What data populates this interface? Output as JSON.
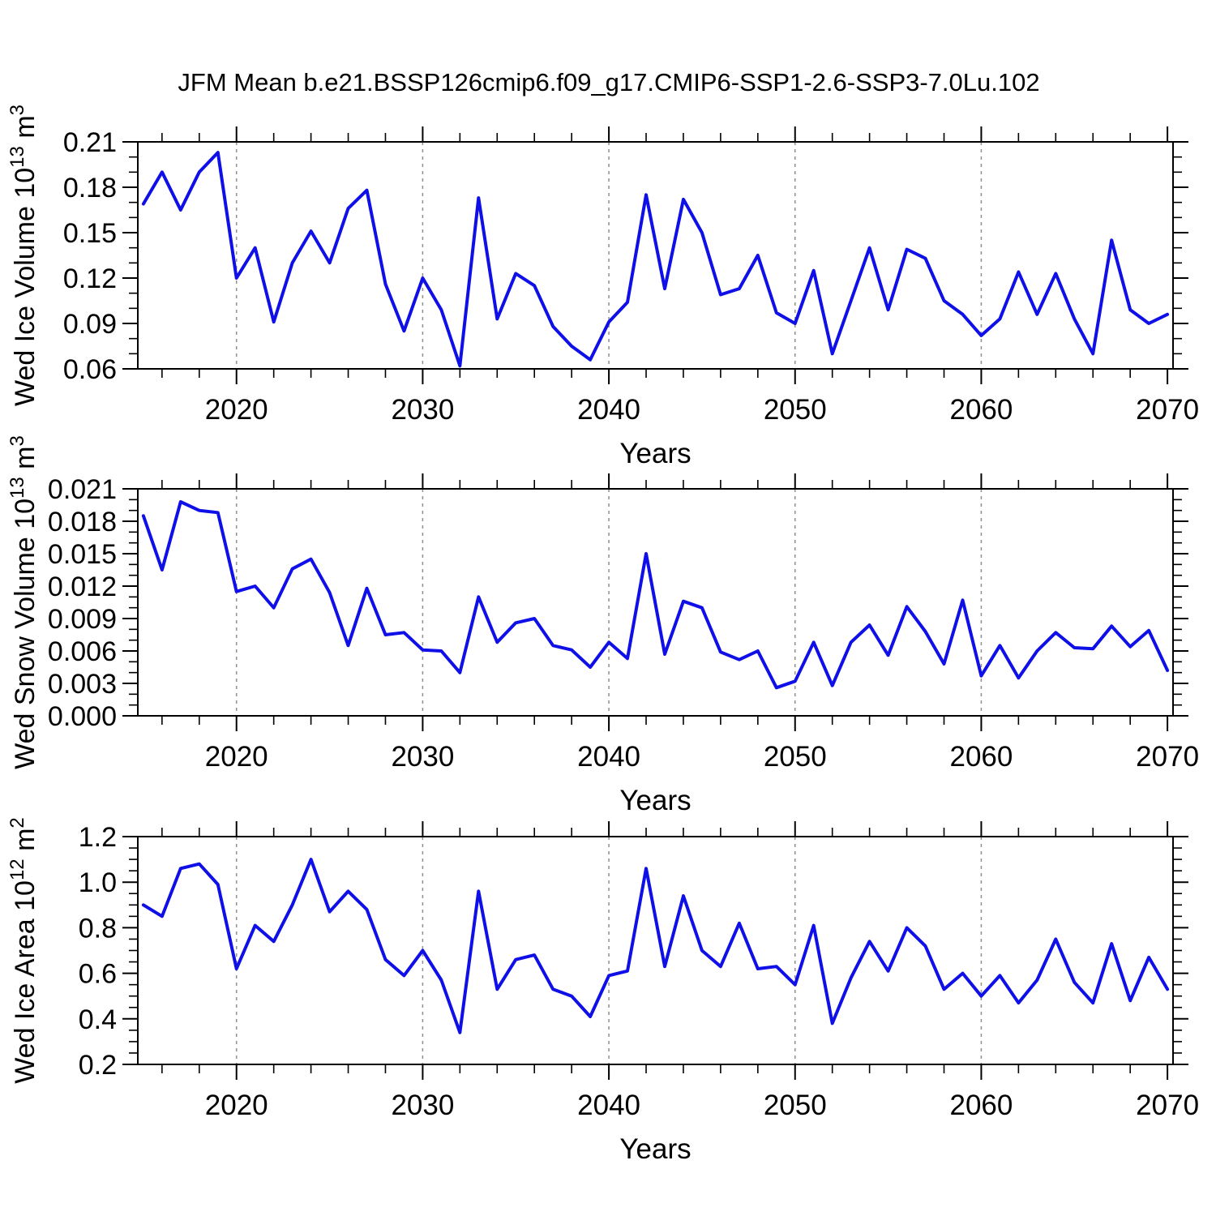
{
  "title": "JFM Mean b.e21.BSSP126cmip6.f09_g17.CMIP6-SSP1-2.6-SSP3-7.0Lu.102",
  "figure": {
    "background": "#ffffff",
    "line_color": "#0f0fe8",
    "grid_color": "#909090",
    "frame_color": "#000000",
    "xlabel": "Years"
  },
  "chart_data": [
    {
      "name": "wed-ice-volume",
      "type": "line",
      "title": "Wed Ice Volume",
      "ylabel": "Wed Ice Volume 10^13 m^3",
      "ylabel_parts": {
        "base": "Wed Ice Volume 10",
        "sup1": "13",
        "mid": " m",
        "sup2": "3"
      },
      "xlabel": "Years",
      "x_start": 2015,
      "x_step": 1,
      "x_axis_range": [
        2014.7,
        2070.3
      ],
      "x_ticks_labeled": [
        2020,
        2030,
        2040,
        2050,
        2060,
        2070
      ],
      "x_minor_tick_step": 2,
      "grid_vertical_dashed_at": [
        2020,
        2030,
        2040,
        2050,
        2060
      ],
      "ylim": [
        0.06,
        0.21
      ],
      "ytick_values": [
        0.06,
        0.09,
        0.12,
        0.15,
        0.18,
        0.21
      ],
      "ytick_labels": [
        "0.06",
        "0.09",
        "0.12",
        "0.15",
        "0.18",
        "0.21"
      ],
      "y_minor_tick_step": 0.01,
      "legend": null,
      "values": [
        0.169,
        0.19,
        0.165,
        0.19,
        0.203,
        0.12,
        0.14,
        0.091,
        0.13,
        0.151,
        0.13,
        0.166,
        0.178,
        0.116,
        0.085,
        0.12,
        0.099,
        0.062,
        0.173,
        0.093,
        0.123,
        0.115,
        0.088,
        0.075,
        0.066,
        0.091,
        0.104,
        0.175,
        0.113,
        0.172,
        0.15,
        0.109,
        0.113,
        0.135,
        0.097,
        0.09,
        0.125,
        0.07,
        0.105,
        0.14,
        0.099,
        0.139,
        0.133,
        0.105,
        0.096,
        0.082,
        0.093,
        0.124,
        0.096,
        0.123,
        0.093,
        0.07,
        0.145,
        0.099,
        0.09,
        0.096
      ]
    },
    {
      "name": "wed-snow-volume",
      "type": "line",
      "title": "Wed Snow Volume",
      "ylabel": "Wed Snow Volume 10^13 m^3",
      "ylabel_parts": {
        "base": "Wed Snow Volume 10",
        "sup1": "13",
        "mid": " m",
        "sup2": "3"
      },
      "xlabel": "Years",
      "x_start": 2015,
      "x_step": 1,
      "x_axis_range": [
        2014.7,
        2070.3
      ],
      "x_ticks_labeled": [
        2020,
        2030,
        2040,
        2050,
        2060,
        2070
      ],
      "x_minor_tick_step": 2,
      "grid_vertical_dashed_at": [
        2020,
        2030,
        2040,
        2050,
        2060
      ],
      "ylim": [
        0.0,
        0.021
      ],
      "ytick_values": [
        0.0,
        0.003,
        0.006,
        0.009,
        0.012,
        0.015,
        0.018,
        0.021
      ],
      "ytick_labels": [
        "0.000",
        "0.003",
        "0.006",
        "0.009",
        "0.012",
        "0.015",
        "0.018",
        "0.021"
      ],
      "y_minor_tick_step": 0.001,
      "legend": null,
      "values": [
        0.0185,
        0.0135,
        0.0198,
        0.019,
        0.0188,
        0.0115,
        0.012,
        0.01,
        0.0136,
        0.0145,
        0.0114,
        0.0065,
        0.0118,
        0.0075,
        0.0077,
        0.0061,
        0.006,
        0.004,
        0.011,
        0.0068,
        0.0086,
        0.009,
        0.0065,
        0.0061,
        0.0045,
        0.0068,
        0.0053,
        0.015,
        0.0057,
        0.0106,
        0.01,
        0.0059,
        0.0052,
        0.006,
        0.0026,
        0.0032,
        0.0068,
        0.0028,
        0.0068,
        0.0084,
        0.0056,
        0.0101,
        0.0078,
        0.0048,
        0.0107,
        0.0037,
        0.0065,
        0.0035,
        0.006,
        0.0077,
        0.0063,
        0.0062,
        0.0083,
        0.0064,
        0.0079,
        0.0042
      ]
    },
    {
      "name": "wed-ice-area",
      "type": "line",
      "title": "Wed Ice Area",
      "ylabel": "Wed Ice Area 10^12 m^2",
      "ylabel_parts": {
        "base": "Wed Ice Area 10",
        "sup1": "12",
        "mid": " m",
        "sup2": "2"
      },
      "xlabel": "Years",
      "x_start": 2015,
      "x_step": 1,
      "x_axis_range": [
        2014.7,
        2070.3
      ],
      "x_ticks_labeled": [
        2020,
        2030,
        2040,
        2050,
        2060,
        2070
      ],
      "x_minor_tick_step": 2,
      "grid_vertical_dashed_at": [
        2020,
        2030,
        2040,
        2050,
        2060
      ],
      "ylim": [
        0.2,
        1.2
      ],
      "ytick_values": [
        0.2,
        0.4,
        0.6,
        0.8,
        1.0,
        1.2
      ],
      "ytick_labels": [
        "0.2",
        "0.4",
        "0.6",
        "0.8",
        "1.0",
        "1.2"
      ],
      "y_minor_tick_step": 0.05,
      "legend": null,
      "values": [
        0.9,
        0.85,
        1.06,
        1.08,
        0.99,
        0.62,
        0.81,
        0.74,
        0.9,
        1.1,
        0.87,
        0.96,
        0.88,
        0.66,
        0.59,
        0.7,
        0.57,
        0.34,
        0.96,
        0.53,
        0.66,
        0.68,
        0.53,
        0.5,
        0.41,
        0.59,
        0.61,
        1.06,
        0.63,
        0.94,
        0.7,
        0.63,
        0.82,
        0.62,
        0.63,
        0.55,
        0.81,
        0.38,
        0.58,
        0.74,
        0.61,
        0.8,
        0.72,
        0.53,
        0.6,
        0.5,
        0.59,
        0.47,
        0.57,
        0.75,
        0.56,
        0.47,
        0.73,
        0.48,
        0.67,
        0.53
      ]
    }
  ]
}
